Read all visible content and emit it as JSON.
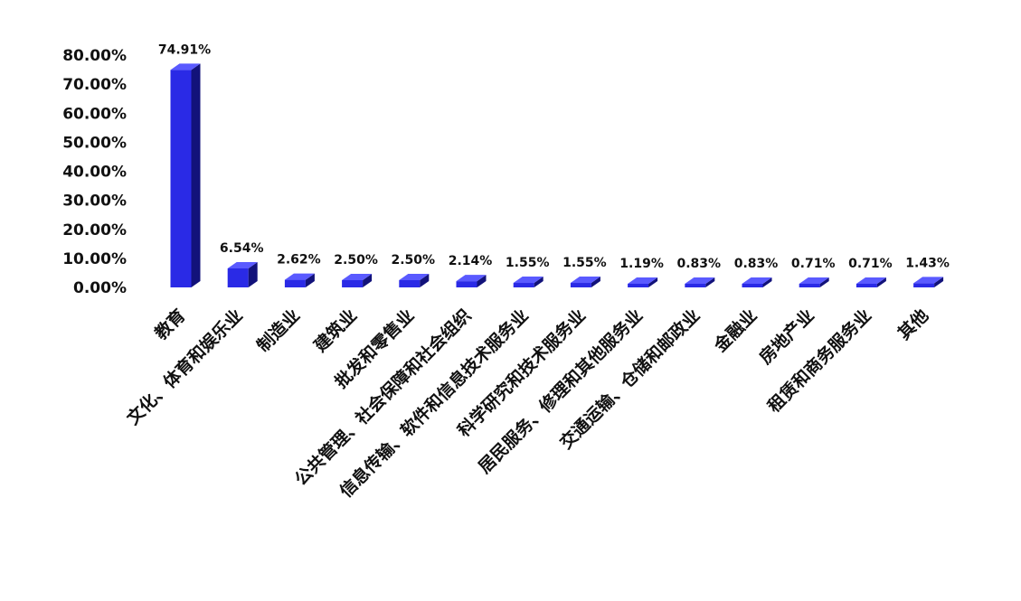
{
  "chart_data": {
    "type": "bar",
    "title": "",
    "xlabel": "",
    "ylabel": "",
    "ylim": [
      0,
      80
    ],
    "yticks": [
      "0.00%",
      "10.00%",
      "20.00%",
      "30.00%",
      "40.00%",
      "50.00%",
      "60.00%",
      "70.00%",
      "80.00%"
    ],
    "categories": [
      "教育",
      "文化、体育和娱乐业",
      "制造业",
      "建筑业",
      "批发和零售业",
      "公共管理、社会保障和社会组织",
      "信息传输、软件和信息技术服务业",
      "科学研究和技术服务业",
      "居民服务、修理和其他服务业",
      "交通运输、仓储和邮政业",
      "金融业",
      "房地产业",
      "租赁和商务服务业",
      "其他"
    ],
    "values": [
      74.91,
      6.54,
      2.62,
      2.5,
      2.5,
      2.14,
      1.55,
      1.55,
      1.19,
      0.83,
      0.83,
      0.71,
      0.71,
      1.43
    ],
    "data_labels": [
      "74.91%",
      "6.54%",
      "2.62%",
      "2.50%",
      "2.50%",
      "2.14%",
      "1.55%",
      "1.55%",
      "1.19%",
      "0.83%",
      "0.83%",
      "0.71%",
      "0.71%",
      "1.43%"
    ],
    "grid": false,
    "legend": "none",
    "bar_color": "#2a2ae6",
    "bar_side_color": "#12127a",
    "bar_top_color": "#5a5aff"
  }
}
